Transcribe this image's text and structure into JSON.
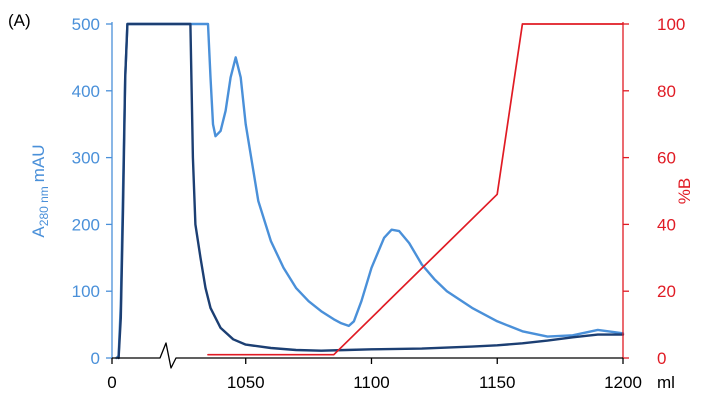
{
  "chart_data": {
    "type": "line",
    "panel_label": "(A)",
    "x_ticks": [
      "0",
      "1050",
      "1100",
      "1150",
      "1200"
    ],
    "x_unit": "ml",
    "x_scale": "broken axis: 0 then 1035 to 1200 ml",
    "ylabel_left": {
      "main": "A",
      "sub": "280 nm",
      "unit": "mAU"
    },
    "ylim_left": [
      0,
      500
    ],
    "yticks_left": [
      "0",
      "100",
      "200",
      "300",
      "400",
      "500"
    ],
    "ylabel_right": "%B",
    "ylim_right": [
      0,
      100
    ],
    "yticks_right": [
      "0",
      "20",
      "40",
      "60",
      "80",
      "100"
    ],
    "grid": false,
    "legend": "none",
    "colors": {
      "light_blue": "#4a90d9",
      "dark_blue": "#1c3f73",
      "red": "#e01b24",
      "axis": "#000000"
    },
    "series": [
      {
        "axis": "left",
        "color": "light_blue",
        "points": [
          [
            2,
            0
          ],
          [
            3,
            3
          ],
          [
            4,
            80
          ],
          [
            5,
            250
          ],
          [
            6,
            420
          ],
          [
            7,
            500
          ],
          [
            1035,
            500
          ],
          [
            1036,
            420
          ],
          [
            1037,
            350
          ],
          [
            1038,
            332
          ],
          [
            1040,
            340
          ],
          [
            1042,
            370
          ],
          [
            1044,
            420
          ],
          [
            1046,
            450
          ],
          [
            1048,
            420
          ],
          [
            1050,
            350
          ],
          [
            1055,
            235
          ],
          [
            1060,
            175
          ],
          [
            1065,
            135
          ],
          [
            1070,
            105
          ],
          [
            1075,
            85
          ],
          [
            1080,
            70
          ],
          [
            1085,
            58
          ],
          [
            1088,
            52
          ],
          [
            1091,
            48
          ],
          [
            1093,
            55
          ],
          [
            1096,
            85
          ],
          [
            1100,
            135
          ],
          [
            1105,
            180
          ],
          [
            1108,
            192
          ],
          [
            1111,
            190
          ],
          [
            1115,
            172
          ],
          [
            1120,
            140
          ],
          [
            1125,
            118
          ],
          [
            1130,
            100
          ],
          [
            1140,
            75
          ],
          [
            1150,
            55
          ],
          [
            1160,
            40
          ],
          [
            1170,
            32
          ],
          [
            1180,
            34
          ],
          [
            1190,
            42
          ],
          [
            1200,
            37
          ]
        ]
      },
      {
        "axis": "left",
        "color": "dark_blue",
        "points": [
          [
            3,
            0
          ],
          [
            4,
            60
          ],
          [
            5,
            220
          ],
          [
            6,
            420
          ],
          [
            7,
            500
          ],
          [
            1028,
            500
          ],
          [
            1029,
            300
          ],
          [
            1030,
            200
          ],
          [
            1032,
            150
          ],
          [
            1034,
            105
          ],
          [
            1036,
            75
          ],
          [
            1040,
            45
          ],
          [
            1045,
            28
          ],
          [
            1050,
            20
          ],
          [
            1060,
            15
          ],
          [
            1070,
            12
          ],
          [
            1080,
            11
          ],
          [
            1090,
            12
          ],
          [
            1100,
            13
          ],
          [
            1120,
            14
          ],
          [
            1140,
            17
          ],
          [
            1150,
            19
          ],
          [
            1160,
            22
          ],
          [
            1170,
            26
          ],
          [
            1180,
            31
          ],
          [
            1190,
            35
          ],
          [
            1200,
            35
          ]
        ]
      },
      {
        "axis": "right",
        "color": "red",
        "points": [
          [
            1035,
            1
          ],
          [
            1085,
            1
          ],
          [
            1150,
            49
          ],
          [
            1160,
            100
          ],
          [
            1200,
            100
          ]
        ]
      }
    ]
  }
}
